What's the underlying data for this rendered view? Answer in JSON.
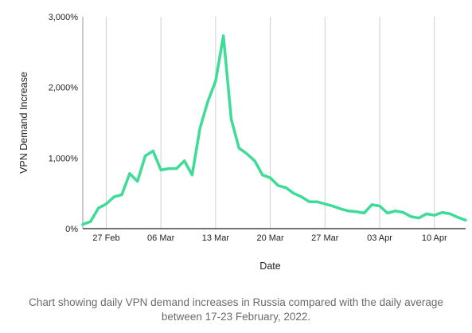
{
  "chart_data": {
    "type": "line",
    "title": "",
    "xlabel": "Date",
    "ylabel": "VPN Demand Increase",
    "ylim": [
      0,
      3000
    ],
    "yticks": [
      {
        "value": 0,
        "label": "0%"
      },
      {
        "value": 1000,
        "label": "1,000%"
      },
      {
        "value": 2000,
        "label": "2,000%"
      },
      {
        "value": 3000,
        "label": "3,000%"
      }
    ],
    "xticks": [
      {
        "date": "2022-02-27",
        "label": "27 Feb"
      },
      {
        "date": "2022-03-06",
        "label": "06 Mar"
      },
      {
        "date": "2022-03-13",
        "label": "13 Mar"
      },
      {
        "date": "2022-03-20",
        "label": "20 Mar"
      },
      {
        "date": "2022-03-27",
        "label": "27 Mar"
      },
      {
        "date": "2022-04-03",
        "label": "03 Apr"
      },
      {
        "date": "2022-04-10",
        "label": "10 Apr"
      }
    ],
    "xlim": [
      "2022-02-24",
      "2022-04-14"
    ],
    "grid": "vertical",
    "line_color": "#3ddc97",
    "series": [
      {
        "x": [
          "2022-02-24",
          "2022-02-25",
          "2022-02-26",
          "2022-02-27",
          "2022-02-28",
          "2022-03-01",
          "2022-03-02",
          "2022-03-03",
          "2022-03-04",
          "2022-03-05",
          "2022-03-06",
          "2022-03-07",
          "2022-03-08",
          "2022-03-09",
          "2022-03-10",
          "2022-03-11",
          "2022-03-12",
          "2022-03-13",
          "2022-03-14",
          "2022-03-15",
          "2022-03-16",
          "2022-03-17",
          "2022-03-18",
          "2022-03-19",
          "2022-03-20",
          "2022-03-21",
          "2022-03-22",
          "2022-03-23",
          "2022-03-24",
          "2022-03-25",
          "2022-03-26",
          "2022-03-27",
          "2022-03-28",
          "2022-03-29",
          "2022-03-30",
          "2022-03-31",
          "2022-04-01",
          "2022-04-02",
          "2022-04-03",
          "2022-04-04",
          "2022-04-05",
          "2022-04-06",
          "2022-04-07",
          "2022-04-08",
          "2022-04-09",
          "2022-04-10",
          "2022-04-11",
          "2022-04-12",
          "2022-04-13",
          "2022-04-14"
        ],
        "values": [
          60,
          100,
          290,
          350,
          450,
          480,
          780,
          670,
          1030,
          1100,
          830,
          850,
          850,
          960,
          760,
          1420,
          1800,
          2090,
          2730,
          1550,
          1140,
          1060,
          960,
          760,
          720,
          610,
          580,
          500,
          450,
          380,
          380,
          350,
          320,
          280,
          250,
          240,
          220,
          340,
          320,
          220,
          250,
          230,
          170,
          150,
          210,
          190,
          230,
          210,
          160,
          120
        ]
      }
    ]
  },
  "caption": {
    "line1": "Chart showing daily VPN demand increases in Russia compared with the daily average",
    "line2": "between 17-23 February, 2022."
  }
}
